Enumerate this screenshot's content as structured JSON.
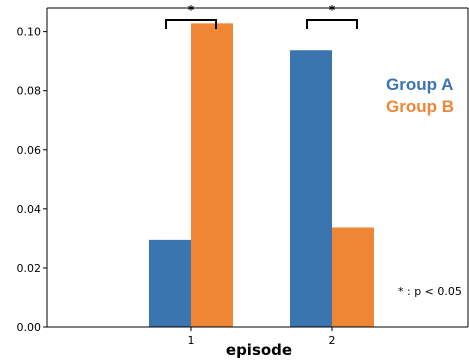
{
  "chart_data": {
    "type": "bar",
    "categories": [
      "1",
      "2"
    ],
    "series": [
      {
        "name": "Group A",
        "values": [
          0.0295,
          0.0937
        ],
        "color": "#3a75b0"
      },
      {
        "name": "Group B",
        "values": [
          0.1028,
          0.0337
        ],
        "color": "#ef8636"
      }
    ],
    "xlabel": "episode",
    "ylabel": "",
    "ylim": [
      0,
      0.108
    ],
    "yticks": [
      0.0,
      0.02,
      0.04,
      0.06,
      0.08,
      0.1
    ],
    "ytick_labels": [
      "0.00",
      "0.02",
      "0.04",
      "0.06",
      "0.08",
      "0.10"
    ],
    "legend_position": "right",
    "grid": false,
    "significance": [
      {
        "category": "1",
        "marker": "*"
      },
      {
        "category": "2",
        "marker": "*"
      }
    ],
    "annotation": "* : p < 0.05"
  }
}
